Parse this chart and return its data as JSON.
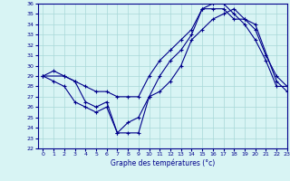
{
  "xlabel": "Graphe des températures (°c)",
  "xlim": [
    -0.5,
    23
  ],
  "ylim": [
    22,
    36
  ],
  "yticks": [
    22,
    23,
    24,
    25,
    26,
    27,
    28,
    29,
    30,
    31,
    32,
    33,
    34,
    35,
    36
  ],
  "xticks": [
    0,
    1,
    2,
    3,
    4,
    5,
    6,
    7,
    8,
    9,
    10,
    11,
    12,
    13,
    14,
    15,
    16,
    17,
    18,
    19,
    20,
    21,
    22,
    23
  ],
  "line_color": "#00008B",
  "bg_color": "#D8F4F4",
  "grid_color": "#A8D8D8",
  "line1_x": [
    0,
    1,
    2,
    3,
    4,
    5,
    6,
    7,
    8,
    9,
    10,
    11,
    12,
    13,
    14,
    15,
    16,
    17,
    18,
    19,
    20,
    21,
    22,
    23
  ],
  "line1_y": [
    29.0,
    29.5,
    29.0,
    28.5,
    28.0,
    27.5,
    27.5,
    27.0,
    27.0,
    27.0,
    29.0,
    30.5,
    31.5,
    32.5,
    33.5,
    35.5,
    35.5,
    35.5,
    34.5,
    34.5,
    33.5,
    31.0,
    29.0,
    28.0
  ],
  "line2_x": [
    0,
    1,
    2,
    3,
    4,
    5,
    6,
    7,
    8,
    9,
    10,
    11,
    12,
    13,
    14,
    15,
    16,
    17,
    18,
    19,
    20,
    21,
    22,
    23
  ],
  "line2_y": [
    29.0,
    28.5,
    28.0,
    26.5,
    26.0,
    25.5,
    26.0,
    23.5,
    23.5,
    23.5,
    27.0,
    29.0,
    30.5,
    31.5,
    33.0,
    35.5,
    36.0,
    36.0,
    35.0,
    34.0,
    32.5,
    30.5,
    28.0,
    28.0
  ],
  "line3_x": [
    0,
    2,
    3,
    4,
    5,
    6,
    7,
    8,
    9,
    10,
    11,
    12,
    13,
    14,
    15,
    16,
    17,
    18,
    19,
    20,
    22,
    23
  ],
  "line3_y": [
    29.0,
    29.0,
    28.5,
    26.5,
    26.0,
    26.5,
    23.5,
    24.5,
    25.0,
    27.0,
    27.5,
    28.5,
    30.0,
    32.5,
    33.5,
    34.5,
    35.0,
    35.5,
    34.5,
    34.0,
    28.5,
    27.5
  ]
}
